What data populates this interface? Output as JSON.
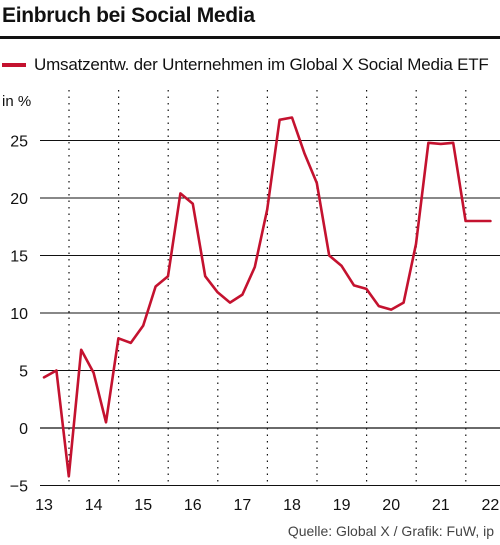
{
  "chart_data": {
    "type": "line",
    "title": "Einbruch bei Social Media",
    "ylabel": "in %",
    "source": "Quelle: Global X / Grafik: FuW, ip",
    "series": [
      {
        "name": "Umsatzentw. der Unternehmen im Global X Social Media ETF",
        "color": "#c4122f",
        "x": [
          13.0,
          13.25,
          13.5,
          13.75,
          14.0,
          14.25,
          14.5,
          14.75,
          15.0,
          15.25,
          15.5,
          15.75,
          16.0,
          16.25,
          16.5,
          16.75,
          17.0,
          17.25,
          17.5,
          17.75,
          18.0,
          18.25,
          18.5,
          18.75,
          19.0,
          19.25,
          19.5,
          19.75,
          20.0,
          20.25,
          20.5,
          20.75,
          21.0,
          21.25,
          21.5,
          21.75,
          22.0
        ],
        "y": [
          4.4,
          5.0,
          -4.2,
          6.8,
          4.8,
          0.5,
          7.8,
          7.4,
          8.9,
          12.3,
          13.2,
          20.4,
          19.5,
          13.2,
          11.8,
          10.9,
          11.6,
          14.0,
          19.0,
          26.8,
          27.0,
          23.9,
          21.3,
          15.0,
          14.1,
          12.4,
          12.1,
          10.6,
          10.3,
          10.9,
          16.0,
          24.8,
          24.7,
          24.8,
          18.0,
          18.0,
          18.0
        ]
      }
    ],
    "x_ticks": [
      "13",
      "14",
      "15",
      "16",
      "17",
      "18",
      "19",
      "20",
      "21",
      "22"
    ],
    "y_ticks": [
      "-5",
      "0",
      "5",
      "10",
      "15",
      "20",
      "25"
    ],
    "xlim": [
      12.5,
      22.2
    ],
    "ylim": [
      -5,
      29
    ],
    "grid": "vertical dotted, horizontal solid"
  }
}
